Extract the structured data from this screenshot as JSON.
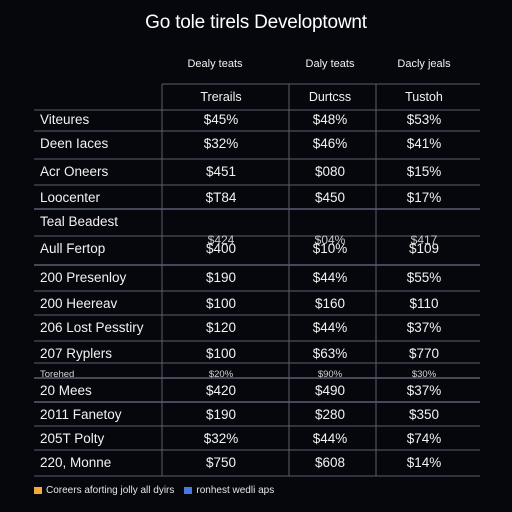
{
  "colors": {
    "background": "#06070c",
    "grid": "#5a5e6e",
    "text": "#f2f2f2"
  },
  "chart_data": {
    "type": "table",
    "title": "Go tole tirels Developtownt",
    "top_headers": [
      "Dealy teats",
      "Daly teats",
      "Dacly jeals"
    ],
    "column_headers": [
      "Trerails",
      "Durtcss",
      "Tustoh"
    ],
    "rows": [
      {
        "label": "Viteures",
        "values": [
          "$45%",
          "$48%",
          "$53%"
        ]
      },
      {
        "label": "Deen Iaces",
        "values": [
          "$32%",
          "$46%",
          "$41%"
        ]
      },
      {
        "label": "Acr Oneers",
        "values": [
          "$451",
          "$080",
          "$15%"
        ]
      },
      {
        "label": "Loocenter",
        "values": [
          "$T84",
          "$450",
          "$17%"
        ]
      },
      {
        "label": "Teal Beadest",
        "values": [
          "",
          "",
          ""
        ]
      },
      {
        "label": "Aull Fertop",
        "values": [
          "$400",
          "$10%",
          "$109"
        ],
        "overlay": [
          "$424",
          "$04%",
          "$417"
        ]
      },
      {
        "label": "200 Presenloy",
        "values": [
          "$190",
          "$44%",
          "$55%"
        ]
      },
      {
        "label": "200 Heereav",
        "values": [
          "$100",
          "$160",
          "$110"
        ]
      },
      {
        "label": "206 Lost Pesstiry",
        "values": [
          "$120",
          "$44%",
          "$37%"
        ]
      },
      {
        "label": "207 Ryplers",
        "values": [
          "$100",
          "$63%",
          "$770"
        ]
      },
      {
        "label": "Torehed",
        "values": [
          "$20%",
          "$90%",
          "$30%"
        ],
        "small": true
      },
      {
        "label": "20 Mees",
        "values": [
          "$420",
          "$490",
          "$37%"
        ]
      },
      {
        "label": "2011 Fanetoy",
        "values": [
          "$190",
          "$280",
          "$350"
        ]
      },
      {
        "label": "205T Polty",
        "values": [
          "$32%",
          "$44%",
          "$74%"
        ]
      },
      {
        "label": "220, Monne",
        "values": [
          "$750",
          "$608",
          "$14%"
        ]
      }
    ],
    "legend": [
      {
        "name": "Coreers aforting jolly all dyirs",
        "color": "#f2a93b"
      },
      {
        "name": "ronhest wedli aps",
        "color": "#4a78e0"
      }
    ]
  }
}
